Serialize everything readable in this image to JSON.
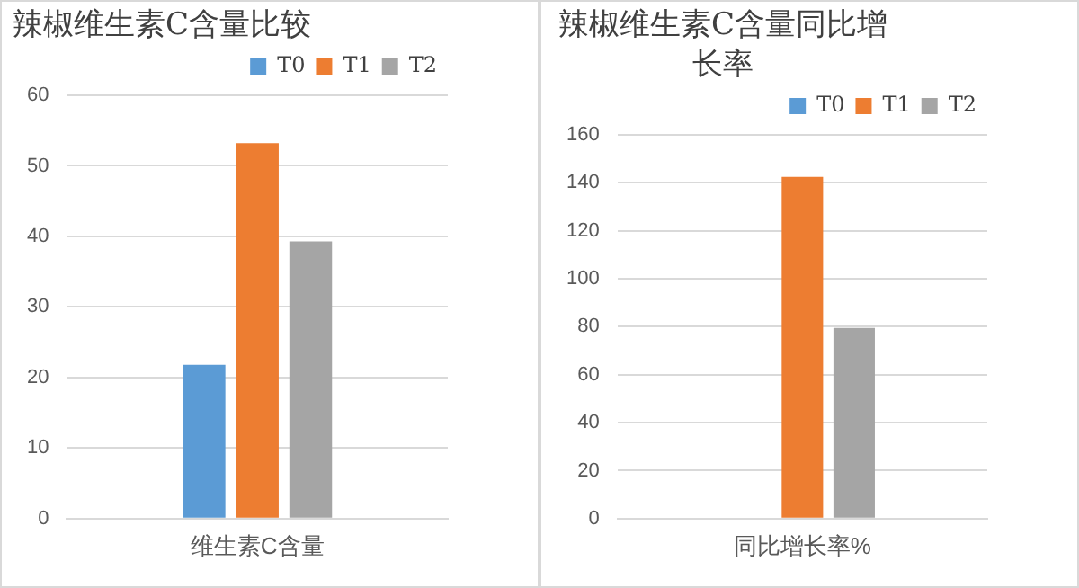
{
  "chart_data": [
    {
      "type": "bar",
      "title": "辣椒维生素C含量比较",
      "categories": [
        "维生素C含量"
      ],
      "series": [
        {
          "name": "T0",
          "color": "#5b9bd5",
          "values": [
            21.8
          ]
        },
        {
          "name": "T1",
          "color": "#ed7d31",
          "values": [
            53.2
          ]
        },
        {
          "name": "T2",
          "color": "#a5a5a5",
          "values": [
            39.3
          ]
        }
      ],
      "ylim": [
        0,
        60
      ],
      "yticks": [
        0,
        10,
        20,
        30,
        40,
        50,
        60
      ],
      "grid": "y",
      "legend": "top right"
    },
    {
      "type": "bar",
      "title": "辣椒维生素C含量同比增长率",
      "categories": [
        "同比增长率%"
      ],
      "series": [
        {
          "name": "T0",
          "color": "#5b9bd5",
          "values": [
            null
          ]
        },
        {
          "name": "T1",
          "color": "#ed7d31",
          "values": [
            142.5
          ]
        },
        {
          "name": "T2",
          "color": "#a5a5a5",
          "values": [
            79.5
          ]
        }
      ],
      "ylim": [
        0,
        160
      ],
      "yticks": [
        0,
        20,
        40,
        60,
        80,
        100,
        120,
        140,
        160
      ],
      "grid": "y",
      "legend": "top right"
    }
  ]
}
